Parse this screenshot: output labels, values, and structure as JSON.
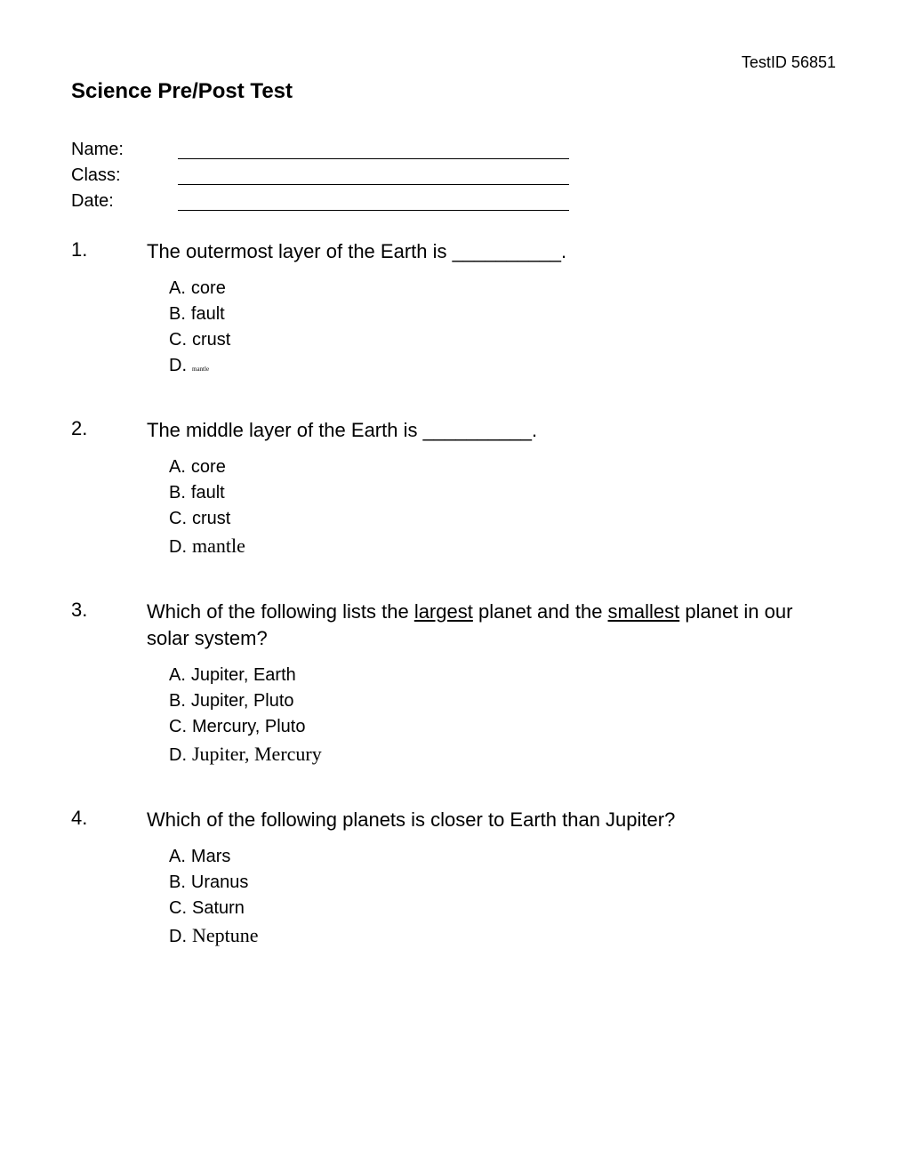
{
  "header": {
    "test_id": "TestID 56851",
    "title": "Science Pre/Post Test"
  },
  "info": {
    "name_label": "Name:",
    "class_label": "Class:",
    "date_label": "Date:"
  },
  "questions": [
    {
      "number": "1.",
      "text_before": "The outermost layer of the Earth is ",
      "blank": "__________",
      "text_after": ".",
      "options": [
        {
          "letter": "A.",
          "text": "core",
          "style": "normal"
        },
        {
          "letter": "B.",
          "text": "fault",
          "style": "normal"
        },
        {
          "letter": "C.",
          "text": "crust",
          "style": "normal"
        },
        {
          "letter": "D.",
          "text": "mantle",
          "style": "small"
        }
      ]
    },
    {
      "number": "2.",
      "text_before": "The middle layer of the Earth is ",
      "blank": "__________",
      "text_after": ".",
      "options": [
        {
          "letter": "A.",
          "text": "core",
          "style": "normal"
        },
        {
          "letter": "B.",
          "text": "fault",
          "style": "normal"
        },
        {
          "letter": "C.",
          "text": "crust",
          "style": "normal"
        },
        {
          "letter": "D.",
          "text": "mantle",
          "style": "serif"
        }
      ]
    },
    {
      "number": "3.",
      "text_before": "Which of the following lists the ",
      "underlined1": "largest",
      "text_middle": " planet and the ",
      "underlined2": "smallest",
      "text_after": " planet in our solar system?",
      "options": [
        {
          "letter": "A.",
          "text": "Jupiter, Earth",
          "style": "normal"
        },
        {
          "letter": "B.",
          "text": "Jupiter, Pluto",
          "style": "normal"
        },
        {
          "letter": "C.",
          "text": "Mercury, Pluto",
          "style": "normal"
        },
        {
          "letter": "D.",
          "text": "Jupiter, Mercury",
          "style": "serif"
        }
      ]
    },
    {
      "number": "4.",
      "text_full": "Which of the following planets is closer to Earth than Jupiter?",
      "options": [
        {
          "letter": "A.",
          "text": "Mars",
          "style": "normal"
        },
        {
          "letter": "B.",
          "text": "Uranus",
          "style": "normal"
        },
        {
          "letter": "C.",
          "text": "Saturn",
          "style": "normal"
        },
        {
          "letter": "D.",
          "text": "Neptune",
          "style": "serif"
        }
      ]
    }
  ]
}
